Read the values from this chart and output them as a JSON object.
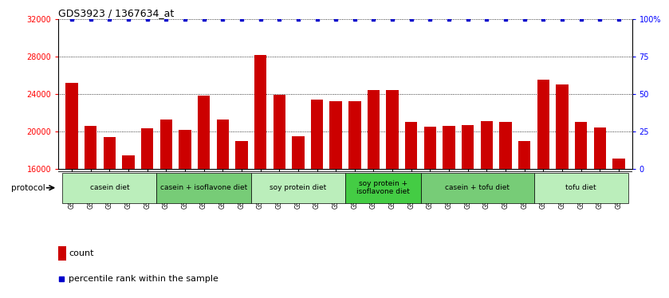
{
  "title": "GDS3923 / 1367634_at",
  "samples": [
    "GSM586045",
    "GSM586046",
    "GSM586047",
    "GSM586048",
    "GSM586049",
    "GSM586050",
    "GSM586051",
    "GSM586052",
    "GSM586053",
    "GSM586054",
    "GSM586055",
    "GSM586056",
    "GSM586057",
    "GSM586058",
    "GSM586059",
    "GSM586060",
    "GSM586061",
    "GSM586062",
    "GSM586063",
    "GSM586064",
    "GSM586065",
    "GSM586066",
    "GSM586067",
    "GSM586068",
    "GSM586069",
    "GSM586070",
    "GSM586071",
    "GSM586072",
    "GSM586073",
    "GSM586074"
  ],
  "counts": [
    25200,
    20600,
    19400,
    17400,
    20300,
    21300,
    20200,
    23800,
    21300,
    19000,
    28200,
    23900,
    19500,
    23400,
    23200,
    23200,
    24400,
    24400,
    21000,
    20500,
    20600,
    20700,
    21100,
    21000,
    19000,
    25500,
    25000,
    21000,
    20400,
    17100
  ],
  "percentile_rank": 100,
  "bar_color": "#cc0000",
  "dot_color": "#0000cc",
  "ylim_left": [
    16000,
    32000
  ],
  "yticks_left": [
    16000,
    20000,
    24000,
    28000,
    32000
  ],
  "ylim_right": [
    0,
    100
  ],
  "yticks_right": [
    0,
    25,
    50,
    75,
    100
  ],
  "protocols": [
    {
      "label": "casein diet",
      "start": 0,
      "end": 5,
      "color": "#bbeebb"
    },
    {
      "label": "casein + isoflavone diet",
      "start": 5,
      "end": 10,
      "color": "#77cc77"
    },
    {
      "label": "soy protein diet",
      "start": 10,
      "end": 15,
      "color": "#bbeebb"
    },
    {
      "label": "soy protein +\nisoflavone diet",
      "start": 15,
      "end": 19,
      "color": "#44cc44"
    },
    {
      "label": "casein + tofu diet",
      "start": 19,
      "end": 25,
      "color": "#77cc77"
    },
    {
      "label": "tofu diet",
      "start": 25,
      "end": 30,
      "color": "#bbeebb"
    }
  ],
  "legend_count_color": "#cc0000",
  "legend_dot_color": "#0000cc",
  "background_color": "#ffffff",
  "title_fontsize": 9,
  "tick_fontsize": 7,
  "sample_fontsize": 5.5
}
